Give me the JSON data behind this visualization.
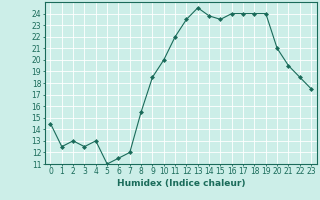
{
  "x": [
    0,
    1,
    2,
    3,
    4,
    5,
    6,
    7,
    8,
    9,
    10,
    11,
    12,
    13,
    14,
    15,
    16,
    17,
    18,
    19,
    20,
    21,
    22,
    23
  ],
  "y": [
    14.5,
    12.5,
    13.0,
    12.5,
    13.0,
    11.0,
    11.5,
    12.0,
    15.5,
    18.5,
    20.0,
    22.0,
    23.5,
    24.5,
    23.8,
    23.5,
    24.0,
    24.0,
    24.0,
    24.0,
    21.0,
    19.5,
    18.5,
    17.5
  ],
  "line_color": "#1a6b5a",
  "marker": "D",
  "marker_size": 2,
  "bg_color": "#cceee8",
  "grid_color": "#ffffff",
  "xlabel": "Humidex (Indice chaleur)",
  "xlim": [
    -0.5,
    23.5
  ],
  "ylim": [
    11,
    25
  ],
  "yticks": [
    11,
    12,
    13,
    14,
    15,
    16,
    17,
    18,
    19,
    20,
    21,
    22,
    23,
    24
  ],
  "xticks": [
    0,
    1,
    2,
    3,
    4,
    5,
    6,
    7,
    8,
    9,
    10,
    11,
    12,
    13,
    14,
    15,
    16,
    17,
    18,
    19,
    20,
    21,
    22,
    23
  ],
  "tick_fontsize": 5.5,
  "xlabel_fontsize": 6.5,
  "axis_color": "#1a6b5a",
  "spine_color": "#1a6b5a"
}
